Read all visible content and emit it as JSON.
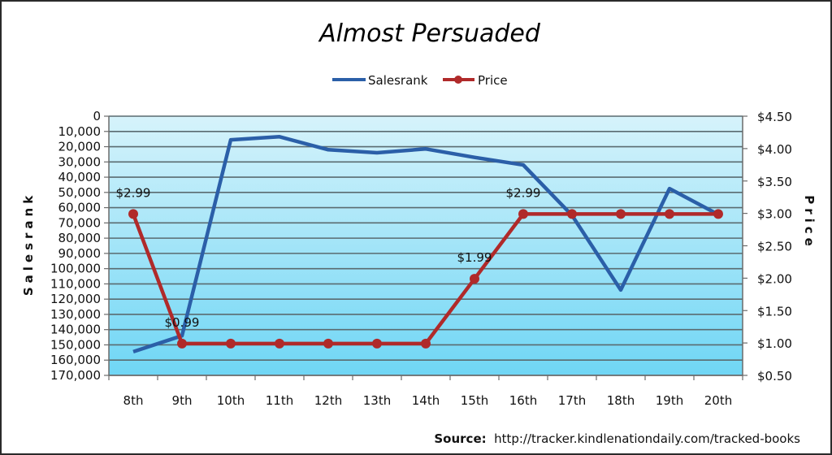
{
  "chart_data": {
    "type": "line",
    "title": "Almost Persuaded",
    "categories": [
      "8th",
      "9th",
      "10th",
      "11th",
      "12th",
      "13th",
      "14th",
      "15th",
      "16th",
      "17th",
      "18th",
      "19th",
      "20th"
    ],
    "series": [
      {
        "name": "Salesrank",
        "axis": "left",
        "color": "#2b5fa8",
        "markers": false,
        "values": [
          154500,
          144000,
          15500,
          13500,
          22000,
          24000,
          21500,
          27000,
          32000,
          65000,
          114000,
          47500,
          64500
        ]
      },
      {
        "name": "Price",
        "axis": "right",
        "color": "#b02a2a",
        "markers": true,
        "values": [
          2.99,
          0.99,
          0.99,
          0.99,
          0.99,
          0.99,
          0.99,
          1.99,
          2.99,
          2.99,
          2.99,
          2.99,
          2.99
        ]
      }
    ],
    "data_labels": [
      {
        "series": "Price",
        "index": 0,
        "text": "$2.99"
      },
      {
        "series": "Price",
        "index": 1,
        "text": "$0.99"
      },
      {
        "series": "Price",
        "index": 7,
        "text": "$1.99"
      },
      {
        "series": "Price",
        "index": 8,
        "text": "$2.99"
      }
    ],
    "xlabel": "",
    "ylabel": "Salesrank",
    "y2label": "Price",
    "ylim": [
      0,
      170000
    ],
    "y_reversed": true,
    "y_ticks": [
      "0",
      "10,000",
      "20,000",
      "30,000",
      "40,000",
      "50,000",
      "60,000",
      "70,000",
      "80,000",
      "90,000",
      "100,000",
      "110,000",
      "120,000",
      "130,000",
      "140,000",
      "150,000",
      "160,000",
      "170,000"
    ],
    "y2lim": [
      0.5,
      4.5
    ],
    "y2_ticks": [
      "$4.50",
      "$4.00",
      "$3.50",
      "$3.00",
      "$2.50",
      "$2.00",
      "$1.50",
      "$1.00",
      "$0.50"
    ],
    "grid": true,
    "legend_position": "top",
    "plot_background": {
      "top": "#d6f3fb",
      "bottom": "#6fd6f5"
    },
    "source_label": "Source:",
    "source_text": "http://tracker.kindlenationdaily.com/tracked-books"
  }
}
